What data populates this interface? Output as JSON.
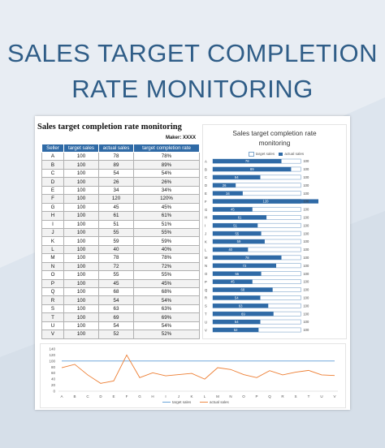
{
  "page_title_line1": "SALES TARGET COMPLETION",
  "page_title_line2": "RATE MONITORING",
  "sheet": {
    "table_title": "Sales target completion rate monitoring",
    "maker": "Maker: XXXX",
    "headers": [
      "Seller",
      "target sales",
      "actual sales",
      "target completion rate"
    ],
    "rows": [
      [
        "A",
        "100",
        "78",
        "78%"
      ],
      [
        "B",
        "100",
        "89",
        "89%"
      ],
      [
        "C",
        "100",
        "54",
        "54%"
      ],
      [
        "D",
        "100",
        "26",
        "26%"
      ],
      [
        "E",
        "100",
        "34",
        "34%"
      ],
      [
        "F",
        "100",
        "120",
        "120%"
      ],
      [
        "G",
        "100",
        "45",
        "45%"
      ],
      [
        "H",
        "100",
        "61",
        "61%"
      ],
      [
        "I",
        "100",
        "51",
        "51%"
      ],
      [
        "J",
        "100",
        "55",
        "55%"
      ],
      [
        "K",
        "100",
        "59",
        "59%"
      ],
      [
        "L",
        "100",
        "40",
        "40%"
      ],
      [
        "M",
        "100",
        "78",
        "78%"
      ],
      [
        "N",
        "100",
        "72",
        "72%"
      ],
      [
        "O",
        "100",
        "55",
        "55%"
      ],
      [
        "P",
        "100",
        "45",
        "45%"
      ],
      [
        "Q",
        "100",
        "68",
        "68%"
      ],
      [
        "R",
        "100",
        "54",
        "54%"
      ],
      [
        "S",
        "100",
        "63",
        "63%"
      ],
      [
        "T",
        "100",
        "69",
        "69%"
      ],
      [
        "U",
        "100",
        "54",
        "54%"
      ],
      [
        "V",
        "100",
        "52",
        "52%"
      ]
    ]
  },
  "chart_data": [
    {
      "type": "bar",
      "orientation": "horizontal",
      "title": "Sales target completion rate monitoring",
      "categories": [
        "A",
        "B",
        "C",
        "D",
        "E",
        "F",
        "G",
        "H",
        "I",
        "J",
        "K",
        "L",
        "M",
        "N",
        "O",
        "P",
        "Q",
        "R",
        "S",
        "T",
        "U",
        "V"
      ],
      "series": [
        {
          "name": "target sales",
          "values": [
            100,
            100,
            100,
            100,
            100,
            100,
            100,
            100,
            100,
            100,
            100,
            100,
            100,
            100,
            100,
            100,
            100,
            100,
            100,
            100,
            100,
            100
          ]
        },
        {
          "name": "actual sales",
          "values": [
            78,
            89,
            54,
            26,
            34,
            120,
            45,
            61,
            51,
            55,
            59,
            40,
            78,
            72,
            55,
            45,
            68,
            54,
            63,
            69,
            54,
            52
          ]
        }
      ],
      "legend": "top",
      "colors": {
        "target": "#ffffff",
        "actual": "#2f6aa6",
        "outline": "#7fa6cc"
      }
    },
    {
      "type": "line",
      "categories": [
        "A",
        "B",
        "C",
        "D",
        "E",
        "F",
        "G",
        "H",
        "I",
        "J",
        "K",
        "L",
        "M",
        "N",
        "O",
        "P",
        "Q",
        "R",
        "S",
        "T",
        "U",
        "V"
      ],
      "series": [
        {
          "name": "target sales",
          "values": [
            100,
            100,
            100,
            100,
            100,
            100,
            100,
            100,
            100,
            100,
            100,
            100,
            100,
            100,
            100,
            100,
            100,
            100,
            100,
            100,
            100,
            100
          ]
        },
        {
          "name": "actual sales",
          "values": [
            78,
            89,
            54,
            26,
            34,
            120,
            45,
            61,
            51,
            55,
            59,
            40,
            78,
            72,
            55,
            45,
            68,
            54,
            63,
            69,
            54,
            52
          ]
        }
      ],
      "yticks": [
        "0",
        "20",
        "40",
        "60",
        "80",
        "100",
        "120",
        "140"
      ],
      "ylim": [
        0,
        140
      ],
      "legend": "bottom",
      "colors": {
        "target": "#5b9bd5",
        "actual": "#ed7d31"
      }
    }
  ]
}
